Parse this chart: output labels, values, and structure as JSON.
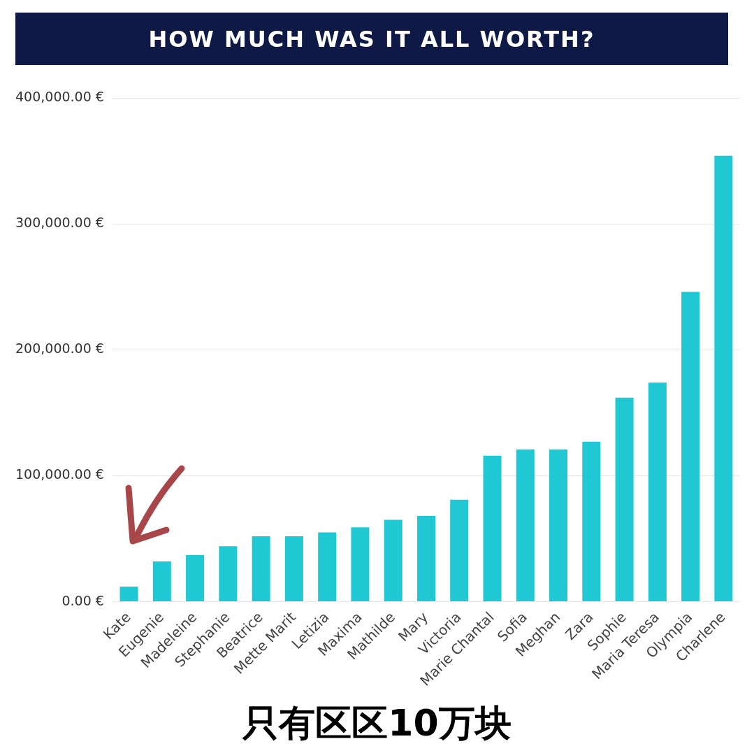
{
  "chart_data": {
    "type": "bar",
    "title": "HOW MUCH WAS IT ALL WORTH?",
    "categories": [
      "Kate",
      "Eugenie",
      "Madeleine",
      "Stephanie",
      "Beatrice",
      "Mette Marit",
      "Letizia",
      "Maxima",
      "Mathilde",
      "Mary",
      "Victoria",
      "Marie Chantal",
      "Sofia",
      "Meghan",
      "Zara",
      "Sophie",
      "Maria Teresa",
      "Olympia",
      "Charlene"
    ],
    "values": [
      12000,
      32000,
      37000,
      44000,
      52000,
      52000,
      55000,
      59000,
      65000,
      68000,
      81000,
      116000,
      121000,
      121000,
      127000,
      162000,
      174000,
      246000,
      354000
    ],
    "color": "#1fc8d3",
    "ylim": [
      0,
      400000
    ],
    "yticks": [
      {
        "value": 0,
        "label": "0.00 €"
      },
      {
        "value": 100000,
        "label": "100,000.00 €"
      },
      {
        "value": 200000,
        "label": "200,000.00 €"
      },
      {
        "value": 300000,
        "label": "300,000.00 €"
      },
      {
        "value": 400000,
        "label": "400,000.00 €"
      }
    ],
    "grid": "y",
    "legend": false,
    "annotations": [
      "只有区区10万块"
    ]
  }
}
